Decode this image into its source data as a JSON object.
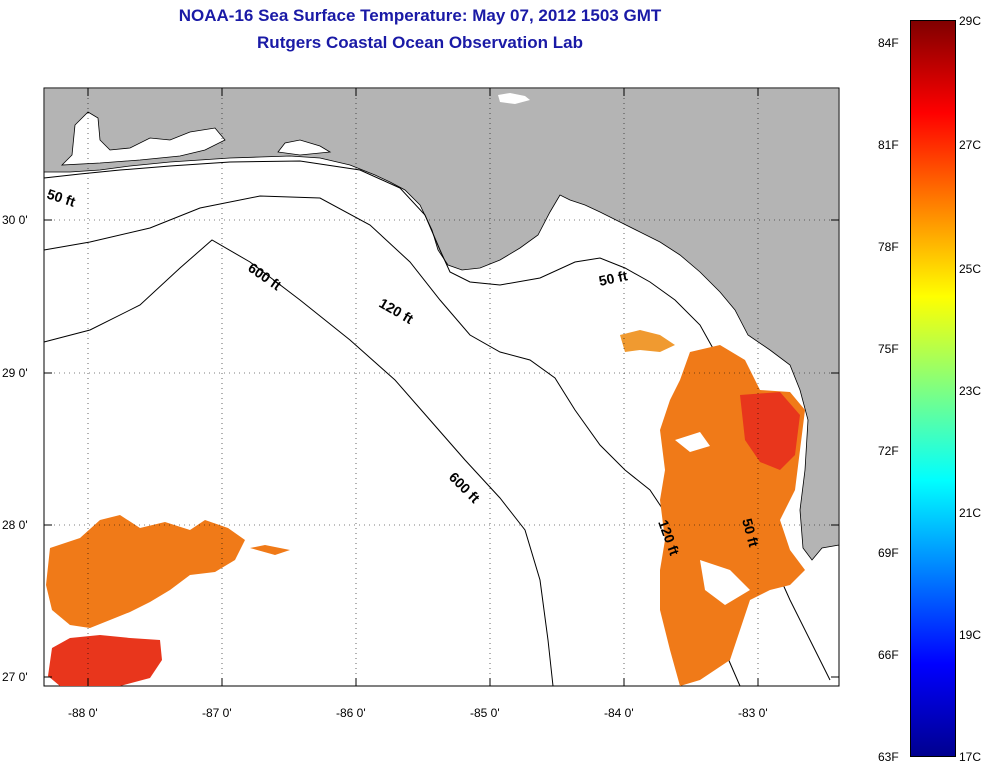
{
  "title": {
    "line1": "NOAA-16 Sea Surface Temperature:  May 07, 2012 1503 GMT",
    "line2": "Rutgers Coastal Ocean Observation Lab"
  },
  "map": {
    "lat_labels": [
      "30 0'",
      "29 0'",
      "28 0'",
      "27 0'"
    ],
    "lon_labels": [
      "-88 0'",
      "-87 0'",
      "-86 0'",
      "-85 0'",
      "-84 0'",
      "-83 0'"
    ],
    "contour_labels": {
      "c50_west": "50 ft",
      "c600_north": "600 ft",
      "c120_north": "120 ft",
      "c50_east": "50 ft",
      "c600_south": "600 ft",
      "c120_south": "120 ft",
      "c50_south": "50 ft"
    },
    "colors": {
      "land": "#b4b4b4",
      "water": "#ffffff",
      "sst_warm": "#f07a18",
      "sst_hot": "#e8361c"
    }
  },
  "colorbar": {
    "fahrenheit": [
      "84F",
      "81F",
      "78F",
      "75F",
      "72F",
      "69F",
      "66F",
      "63F"
    ],
    "celsius": [
      "29C",
      "27C",
      "25C",
      "23C",
      "21C",
      "19C",
      "17C"
    ]
  }
}
